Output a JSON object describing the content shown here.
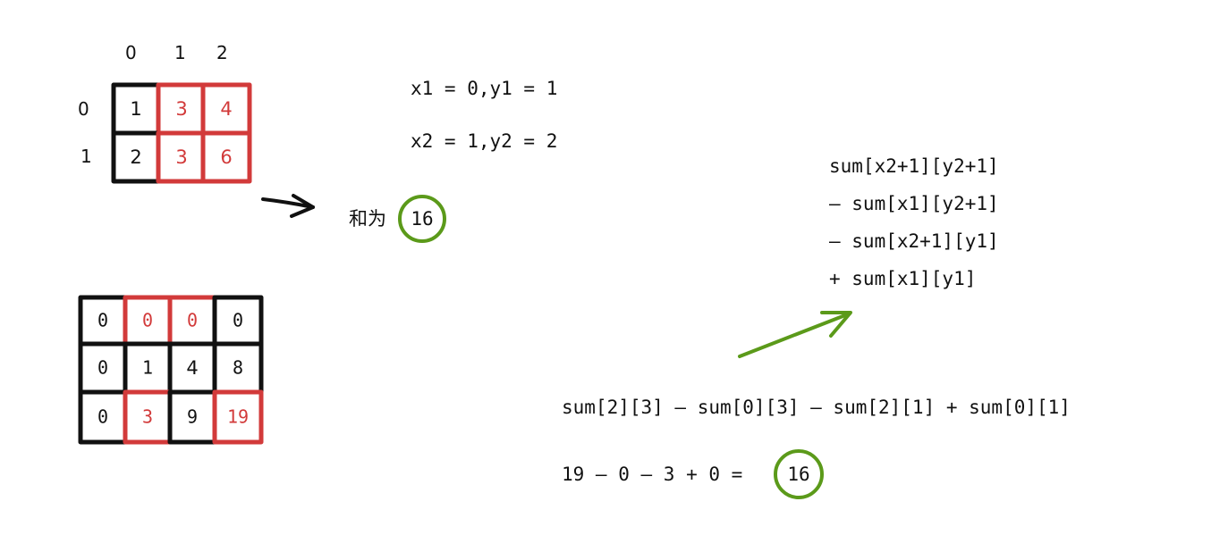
{
  "colors": {
    "black": "#111111",
    "red": "#d23a3a",
    "green": "#5b9a1a"
  },
  "small_grid": {
    "col_headers": [
      "0",
      "1",
      "2"
    ],
    "row_headers": [
      "0",
      "1"
    ],
    "rows": [
      [
        "1",
        "3",
        "4"
      ],
      [
        "2",
        "3",
        "6"
      ]
    ]
  },
  "sum_grid": {
    "rows": [
      [
        "0",
        "0",
        "0",
        "0"
      ],
      [
        "0",
        "1",
        "4",
        "8"
      ],
      [
        "0",
        "3",
        "9",
        "19"
      ]
    ]
  },
  "coords": {
    "line1": "x1 = 0,y1 = 1",
    "line2": "x2 = 1,y2 = 2"
  },
  "sum_result": {
    "label": "和为",
    "value": "16"
  },
  "formula": {
    "lines": [
      "sum[x2+1][y2+1]",
      "– sum[x1][y2+1]",
      "– sum[x2+1][y1]",
      "+ sum[x1][y1]"
    ]
  },
  "calc": {
    "expression": "sum[2][3] – sum[0][3] – sum[2][1] + sum[0][1]",
    "arith": "19 – 0 – 3 + 0 =",
    "result": "16"
  },
  "icons": {
    "black_arrow": "arrow-right-icon",
    "green_arrow": "arrow-up-right-icon",
    "circle": "circle-highlight-icon"
  }
}
